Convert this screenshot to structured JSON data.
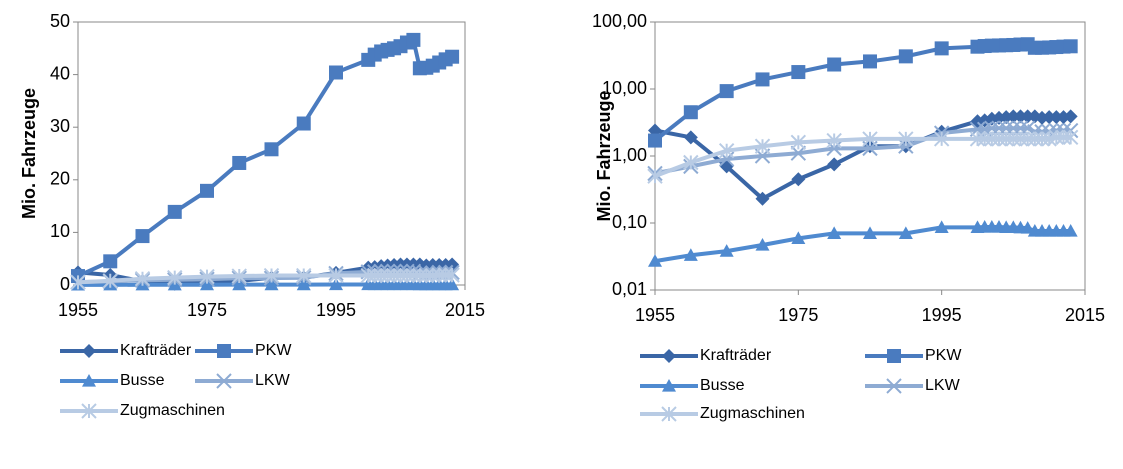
{
  "chart_data": [
    {
      "type": "line",
      "y_label": "Mio. Fahrzeuge",
      "log_scale": false,
      "x": [
        1955,
        1960,
        1965,
        1970,
        1975,
        1980,
        1985,
        1990,
        1995,
        2000,
        2001,
        2002,
        2003,
        2004,
        2005,
        2006,
        2007,
        2008,
        2009,
        2010,
        2011,
        2012,
        2013
      ],
      "xlim": [
        1955,
        2015
      ],
      "xticks": [
        1955,
        1975,
        1995,
        2015
      ],
      "ylim": [
        0,
        50
      ],
      "yticks": [
        0,
        10,
        20,
        30,
        40,
        50
      ],
      "series": [
        {
          "name": "Krafträder",
          "color": "#3a66a6",
          "marker": "diamond",
          "values": [
            2.4,
            1.9,
            0.7,
            0.23,
            0.45,
            0.75,
            1.4,
            1.4,
            2.3,
            3.3,
            3.4,
            3.6,
            3.7,
            3.8,
            3.9,
            3.9,
            3.9,
            3.9,
            3.7,
            3.8,
            3.8,
            3.8,
            3.9
          ]
        },
        {
          "name": "PKW",
          "color": "#4a7bbf",
          "marker": "square",
          "values": [
            1.7,
            4.5,
            9.3,
            13.9,
            17.9,
            23.2,
            25.8,
            30.7,
            40.4,
            42.8,
            43.8,
            44.4,
            44.7,
            45.0,
            45.4,
            46.1,
            46.6,
            41.2,
            41.3,
            41.7,
            42.3,
            42.9,
            43.4
          ]
        },
        {
          "name": "Busse",
          "color": "#4f8ad0",
          "marker": "triangle",
          "values": [
            0.027,
            0.033,
            0.038,
            0.047,
            0.059,
            0.07,
            0.07,
            0.07,
            0.086,
            0.086,
            0.087,
            0.087,
            0.087,
            0.086,
            0.086,
            0.085,
            0.084,
            0.076,
            0.076,
            0.076,
            0.076,
            0.076,
            0.076
          ]
        },
        {
          "name": "LKW",
          "color": "#8eabd3",
          "marker": "x",
          "values": [
            0.55,
            0.7,
            0.9,
            1.0,
            1.1,
            1.3,
            1.3,
            1.4,
            2.2,
            2.5,
            2.5,
            2.6,
            2.6,
            2.6,
            2.6,
            2.6,
            2.6,
            2.3,
            2.3,
            2.3,
            2.4,
            2.4,
            2.4
          ]
        },
        {
          "name": "Zugmaschinen",
          "color": "#b8cbe4",
          "marker": "star",
          "values": [
            0.5,
            0.8,
            1.2,
            1.4,
            1.6,
            1.7,
            1.8,
            1.8,
            1.8,
            1.8,
            1.8,
            1.8,
            1.8,
            1.8,
            1.8,
            1.8,
            1.8,
            1.8,
            1.8,
            1.8,
            1.9,
            1.9,
            1.9
          ]
        }
      ]
    },
    {
      "type": "line",
      "y_label": "Mio. Fahrzeuge",
      "log_scale": true,
      "x": [
        1955,
        1960,
        1965,
        1970,
        1975,
        1980,
        1985,
        1990,
        1995,
        2000,
        2001,
        2002,
        2003,
        2004,
        2005,
        2006,
        2007,
        2008,
        2009,
        2010,
        2011,
        2012,
        2013
      ],
      "xlim": [
        1955,
        2015
      ],
      "xticks": [
        1955,
        1975,
        1995,
        2015
      ],
      "ylim": [
        0.01,
        100
      ],
      "yticks": [
        {
          "value": 0.01,
          "label": "0,01"
        },
        {
          "value": 0.1,
          "label": "0,10"
        },
        {
          "value": 1,
          "label": "1,00"
        },
        {
          "value": 10,
          "label": "10,00"
        },
        {
          "value": 100,
          "label": "100,00"
        }
      ],
      "series": [
        {
          "name": "Krafträder",
          "color": "#3a66a6",
          "marker": "diamond",
          "values": [
            2.4,
            1.9,
            0.7,
            0.23,
            0.45,
            0.75,
            1.4,
            1.4,
            2.3,
            3.3,
            3.4,
            3.6,
            3.7,
            3.8,
            3.9,
            3.9,
            3.9,
            3.9,
            3.7,
            3.8,
            3.8,
            3.8,
            3.9
          ]
        },
        {
          "name": "PKW",
          "color": "#4a7bbf",
          "marker": "square",
          "values": [
            1.7,
            4.5,
            9.3,
            13.9,
            17.9,
            23.2,
            25.8,
            30.7,
            40.4,
            42.8,
            43.8,
            44.4,
            44.7,
            45.0,
            45.4,
            46.1,
            46.6,
            41.2,
            41.3,
            41.7,
            42.3,
            42.9,
            43.4
          ]
        },
        {
          "name": "Busse",
          "color": "#4f8ad0",
          "marker": "triangle",
          "values": [
            0.027,
            0.033,
            0.038,
            0.047,
            0.059,
            0.07,
            0.07,
            0.07,
            0.086,
            0.086,
            0.087,
            0.087,
            0.087,
            0.086,
            0.086,
            0.085,
            0.084,
            0.076,
            0.076,
            0.076,
            0.076,
            0.076,
            0.076
          ]
        },
        {
          "name": "LKW",
          "color": "#8eabd3",
          "marker": "x",
          "values": [
            0.55,
            0.7,
            0.9,
            1.0,
            1.1,
            1.3,
            1.3,
            1.4,
            2.2,
            2.5,
            2.5,
            2.6,
            2.6,
            2.6,
            2.6,
            2.6,
            2.6,
            2.3,
            2.3,
            2.3,
            2.4,
            2.4,
            2.4
          ]
        },
        {
          "name": "Zugmaschinen",
          "color": "#b8cbe4",
          "marker": "star",
          "values": [
            0.5,
            0.8,
            1.2,
            1.4,
            1.6,
            1.7,
            1.8,
            1.8,
            1.8,
            1.8,
            1.8,
            1.8,
            1.8,
            1.8,
            1.8,
            1.8,
            1.8,
            1.8,
            1.8,
            1.8,
            1.9,
            1.9,
            1.9
          ]
        }
      ]
    }
  ]
}
